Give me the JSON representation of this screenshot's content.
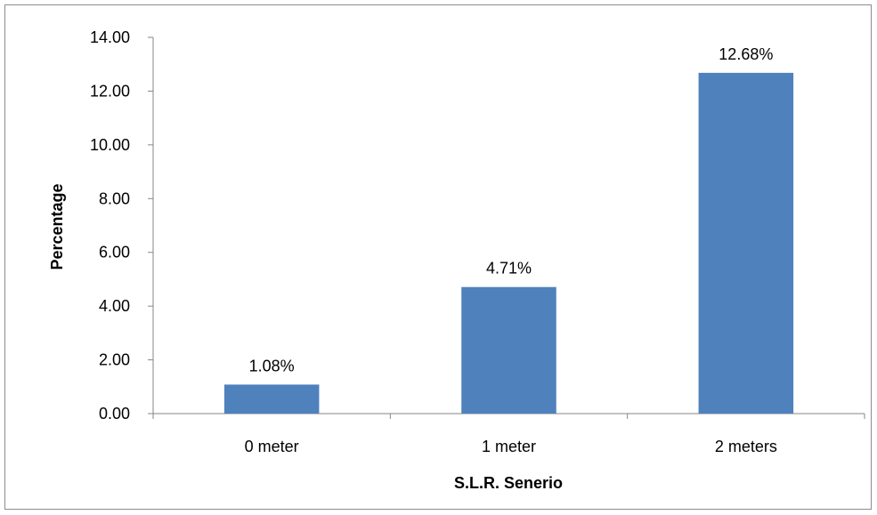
{
  "chart_data": {
    "type": "bar",
    "title": "",
    "xlabel": "S.L.R. Senerio",
    "ylabel": "Percentage",
    "categories": [
      "0 meter",
      "1 meter",
      "2 meters"
    ],
    "values": [
      1.08,
      4.71,
      12.68
    ],
    "data_labels": [
      "1.08%",
      "4.71%",
      "12.68%"
    ],
    "ylim": [
      0,
      14
    ],
    "y_ticks": [
      "0.00",
      "2.00",
      "4.00",
      "6.00",
      "8.00",
      "10.00",
      "12.00",
      "14.00"
    ],
    "grid": false,
    "legend": "none",
    "bar_color": "#4F81BD"
  }
}
